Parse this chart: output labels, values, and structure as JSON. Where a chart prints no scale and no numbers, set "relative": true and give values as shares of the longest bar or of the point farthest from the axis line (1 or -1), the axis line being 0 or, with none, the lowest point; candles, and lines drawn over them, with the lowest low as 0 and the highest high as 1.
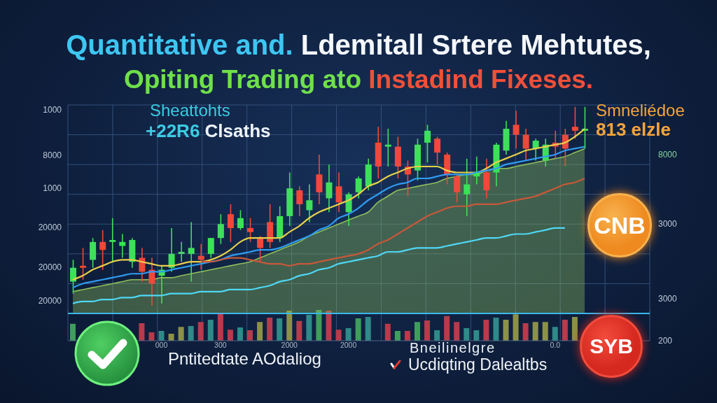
{
  "chart_data": [
    {
      "type": "candlestick",
      "title": "Quantitative and. Ldemitall Srtere Mehtutes,",
      "subtitle": "Opiting Trading ato Instadind Fixeses.",
      "annotations": [
        "Sheattohts",
        "+22R6 Clsaths",
        "Smneliédoe",
        "813 elzle",
        "CNB",
        "SYB",
        "Bneilinelgre",
        "Ucdiqting Dalealtbs",
        "Pntitedtate AOdaliog",
        "1000",
        "8000",
        "1000",
        "20000",
        "20000",
        "20000",
        "8000",
        "3000",
        "3000",
        "200"
      ],
      "categories": [
        null,
        null,
        null,
        null,
        null,
        null,
        null,
        null,
        null,
        null,
        null,
        null,
        null,
        null,
        null,
        null,
        null,
        null,
        null,
        null,
        null,
        null,
        null,
        null,
        null,
        null,
        null,
        null,
        null,
        null,
        null,
        null,
        null,
        null,
        null,
        null,
        null,
        null,
        null,
        null,
        null,
        null,
        null,
        null,
        null,
        null,
        null,
        null,
        null,
        null,
        null,
        null,
        null
      ],
      "ohlc": [
        [
          0.12,
          0.23,
          0.06,
          0.19
        ],
        [
          0.2,
          0.29,
          0.13,
          0.19
        ],
        [
          0.23,
          0.34,
          0.19,
          0.32
        ],
        [
          0.32,
          0.38,
          0.18,
          0.28
        ],
        [
          0.32,
          0.44,
          0.22,
          0.33
        ],
        [
          0.3,
          0.36,
          0.24,
          0.32
        ],
        [
          0.22,
          0.34,
          0.19,
          0.33
        ],
        [
          0.24,
          0.29,
          0.12,
          0.17
        ],
        [
          0.18,
          0.24,
          0,
          0.11
        ],
        [
          0.15,
          0.2,
          0.01,
          0.18
        ],
        [
          0.19,
          0.39,
          0.17,
          0.26
        ],
        [
          0.26,
          0.32,
          0.22,
          0.27
        ],
        [
          0.26,
          0.42,
          0.12,
          0.29
        ],
        [
          0.25,
          0.31,
          0.18,
          0.23
        ],
        [
          0.26,
          0.34,
          0.24,
          0.34
        ],
        [
          0.34,
          0.46,
          0.31,
          0.41
        ],
        [
          0.46,
          0.51,
          0.32,
          0.39
        ],
        [
          0.39,
          0.48,
          0.38,
          0.44
        ],
        [
          0.39,
          0.44,
          0.32,
          0.37
        ],
        [
          0.34,
          0.35,
          0.22,
          0.29
        ],
        [
          0.42,
          0.51,
          0.29,
          0.32
        ],
        [
          0.34,
          0.5,
          0.32,
          0.45
        ],
        [
          0.45,
          0.67,
          0.4,
          0.59
        ],
        [
          0.58,
          0.6,
          0.45,
          0.51
        ],
        [
          0.48,
          0.61,
          0.42,
          0.53
        ],
        [
          0.66,
          0.76,
          0.51,
          0.57
        ],
        [
          0.54,
          0.71,
          0.47,
          0.62
        ],
        [
          0.6,
          0.67,
          0.47,
          0.52
        ],
        [
          0.47,
          0.57,
          0.4,
          0.56
        ],
        [
          0.57,
          0.65,
          0.54,
          0.64
        ],
        [
          0.6,
          0.74,
          0.58,
          0.71
        ],
        [
          0.82,
          0.9,
          0.64,
          0.7
        ],
        [
          0.8,
          0.89,
          0.7,
          0.81
        ],
        [
          0.8,
          0.85,
          0.64,
          0.7
        ],
        [
          0.7,
          0.73,
          0.55,
          0.66
        ],
        [
          0.68,
          0.84,
          0.63,
          0.81
        ],
        [
          0.82,
          0.91,
          0.72,
          0.88
        ],
        [
          0.84,
          0.85,
          0.71,
          0.77
        ],
        [
          0.76,
          0.77,
          0.61,
          0.66
        ],
        [
          0.65,
          0.66,
          0.52,
          0.57
        ],
        [
          0.56,
          0.74,
          0.45,
          0.61
        ],
        [
          0.65,
          0.75,
          0.61,
          0.67
        ],
        [
          0.67,
          0.74,
          0.54,
          0.58
        ],
        [
          0.67,
          0.82,
          0.6,
          0.81
        ],
        [
          0.78,
          0.93,
          0.76,
          0.89
        ],
        [
          0.91,
          0.98,
          0.79,
          0.86
        ],
        [
          0.86,
          0.89,
          0.73,
          0.79
        ],
        [
          0.79,
          0.84,
          0.73,
          0.83
        ],
        [
          0.73,
          0.84,
          0.7,
          0.81
        ],
        [
          0.82,
          0.88,
          0.74,
          0.8
        ],
        [
          0.86,
          0.89,
          0.7,
          0.79
        ],
        [
          0.9,
          1,
          0.84,
          0.88
        ],
        [
          0.88,
          1,
          0.79,
          0.89
        ]
      ],
      "colors": [
        "#3ee05a",
        "#f0483a",
        "#3ee05a",
        "#f0483a",
        "#3ee05a",
        "#3ee05a",
        "#3ee05a",
        "#f0483a",
        "#f0483a",
        "#3ee05a",
        "#3ee05a",
        "#3ee05a",
        "#3ee05a",
        "#f0483a",
        "#3ee05a",
        "#3ee05a",
        "#f0483a",
        "#3ee05a",
        "#f0483a",
        "#f0483a",
        "#f0483a",
        "#3ee05a",
        "#3ee05a",
        "#f0483a",
        "#3ee05a",
        "#f0483a",
        "#3ee05a",
        "#f0483a",
        "#3ee05a",
        "#3ee05a",
        "#3ee05a",
        "#f0483a",
        "#3ee05a",
        "#f0483a",
        "#f0483a",
        "#3ee05a",
        "#3ee05a",
        "#f0483a",
        "#f0483a",
        "#f0483a",
        "#3ee05a",
        "#3ee05a",
        "#f0483a",
        "#3ee05a",
        "#3ee05a",
        "#f0483a",
        "#f0483a",
        "#3ee05a",
        "#3ee05a",
        "#f0483a",
        "#f0483a",
        "#f0483a",
        "#3ee05a"
      ],
      "series": [
        {
          "type": "area",
          "color": "#8fbf5a",
          "values": [
            0.07,
            0.08,
            0.09,
            0.1,
            0.11,
            0.12,
            0.13,
            0.13,
            0.13,
            0.14,
            0.14,
            0.15,
            0.16,
            0.17,
            0.18,
            0.19,
            0.2,
            0.21,
            0.22,
            0.24,
            0.26,
            0.28,
            0.3,
            0.32,
            0.35,
            0.37,
            0.39,
            0.41,
            0.43,
            0.45,
            0.47,
            0.52,
            0.55,
            0.58,
            0.59,
            0.6,
            0.61,
            0.62,
            0.64,
            0.65,
            0.66,
            0.66,
            0.68,
            0.69,
            0.69,
            0.7,
            0.71,
            0.72,
            0.73,
            0.74,
            0.75,
            0.77,
            0.79
          ]
        },
        {
          "type": "line",
          "color": "#e8d04a",
          "values": [
            0.13,
            0.15,
            0.18,
            0.2,
            0.22,
            0.23,
            0.23,
            0.22,
            0.21,
            0.2,
            0.2,
            0.21,
            0.22,
            0.22,
            0.23,
            0.25,
            0.28,
            0.32,
            0.34,
            0.34,
            0.34,
            0.34,
            0.37,
            0.4,
            0.44,
            0.47,
            0.49,
            0.51,
            0.53,
            0.56,
            0.6,
            0.62,
            0.65,
            0.67,
            0.69,
            0.7,
            0.7,
            0.7,
            0.68,
            0.67,
            0.67,
            0.67,
            0.69,
            0.72,
            0.74,
            0.76,
            0.78,
            0.79,
            0.8,
            0.81,
            0.82,
            0.85,
            0.89
          ]
        },
        {
          "type": "line",
          "color": "#2f9cf0",
          "values": [
            0.09,
            0.11,
            0.12,
            0.13,
            0.14,
            0.15,
            0.16,
            0.16,
            0.17,
            0.17,
            0.18,
            0.19,
            0.2,
            0.21,
            0.22,
            0.23,
            0.25,
            0.26,
            0.27,
            0.28,
            0.28,
            0.29,
            0.31,
            0.33,
            0.35,
            0.38,
            0.4,
            0.44,
            0.46,
            0.49,
            0.53,
            0.56,
            0.59,
            0.61,
            0.62,
            0.64,
            0.64,
            0.65,
            0.66,
            0.66,
            0.66,
            0.67,
            0.68,
            0.69,
            0.71,
            0.72,
            0.73,
            0.74,
            0.75,
            0.76,
            0.78,
            0.79,
            0.8
          ]
        },
        {
          "type": "line",
          "color": "#4fd8f5",
          "values": [
            0.01,
            0.02,
            0.02,
            0.03,
            0.03,
            0.04,
            0.04,
            0.05,
            0.05,
            0.05,
            0.06,
            0.06,
            0.06,
            0.07,
            0.07,
            0.07,
            0.08,
            0.08,
            0.08,
            0.09,
            0.1,
            0.12,
            0.13,
            0.15,
            0.16,
            0.18,
            0.19,
            0.21,
            0.22,
            0.23,
            0.24,
            0.25,
            0.27,
            0.27,
            0.28,
            0.29,
            0.29,
            0.29,
            0.3,
            0.31,
            0.32,
            0.33,
            0.34,
            0.34,
            0.35,
            0.36,
            0.36,
            0.37,
            0.38,
            0.39,
            0.39,
            null,
            null
          ]
        },
        {
          "type": "line",
          "color": "#c8583a",
          "values": [
            null,
            null,
            null,
            null,
            null,
            null,
            null,
            null,
            null,
            null,
            null,
            null,
            null,
            0.22,
            0.22,
            0.23,
            0.24,
            0.24,
            0.23,
            0.22,
            0.21,
            0.21,
            0.2,
            0.21,
            0.21,
            0.22,
            0.23,
            0.24,
            0.25,
            0.26,
            0.28,
            0.31,
            0.33,
            0.36,
            0.39,
            0.42,
            0.45,
            0.47,
            0.49,
            0.5,
            0.5,
            0.51,
            0.51,
            0.51,
            0.52,
            0.53,
            0.54,
            0.55,
            0.57,
            0.59,
            0.61,
            0.62,
            0.64
          ]
        }
      ],
      "relative": true,
      "grid": true
    },
    {
      "type": "bar",
      "categories": [
        null,
        null,
        null,
        null,
        null,
        null,
        null,
        null,
        null,
        "000",
        null,
        null,
        null,
        null,
        null,
        "300",
        null,
        null,
        null,
        null,
        null,
        null,
        "2000",
        null,
        null,
        null,
        null,
        null,
        "2000",
        null,
        null,
        null,
        null,
        null,
        null,
        null,
        null,
        null,
        null,
        null,
        null,
        null,
        null,
        null,
        null,
        null,
        null,
        null,
        null,
        "0.0",
        null,
        null,
        null
      ],
      "values": [
        0.55,
        null,
        null,
        null,
        null,
        null,
        null,
        0.57,
        0.27,
        0.32,
        0.23,
        0.45,
        0.48,
        0.61,
        0.68,
        0.91,
        0.36,
        0.43,
        0.34,
        0.61,
        0.75,
        0.73,
        0.98,
        0.64,
        0.84,
        1,
        0.98,
        0.36,
        0.41,
        0.73,
        0.77,
        null,
        0.55,
        0.32,
        0.32,
        0.61,
        0.66,
        0.34,
        0.8,
        0.61,
        0.41,
        0.34,
        0.68,
        0.75,
        0.68,
        0.86,
        0.57,
        0.61,
        0.61,
        0.45,
        0.68,
        0.77,
        null
      ],
      "colors": [
        "#3f9e5c",
        null,
        null,
        null,
        null,
        null,
        null,
        "#b83a4b",
        "#b83a4b",
        "#2f8a88",
        "#8c9148",
        "#8c9148",
        "#2f8a88",
        "#b83a4b",
        "#2f8a88",
        "#b83a4b",
        "#b83a4b",
        "#2f8a88",
        "#b83a4b",
        "#8c9148",
        "#b83a4b",
        "#2f8a88",
        "#8c9148",
        "#b83a4b",
        "#2f8a88",
        "#3f9e5c",
        "#b83a4b",
        "#b83a4b",
        "#2f8a88",
        "#3f9e5c",
        "#2f8a88",
        null,
        "#b83a4b",
        "#3f9e5c",
        "#b83a4b",
        "#3f9e5c",
        "#b83a4b",
        "#2f8a88",
        "#b83a4b",
        "#b83a4b",
        "#2f8a88",
        "#2f8a88",
        "#b83a4b",
        "#2f8a88",
        "#8c9148",
        "#8c9148",
        "#b83a4b",
        "#8c9148",
        "#8c9148",
        "#2f8a88",
        "#b83a4b",
        "#8c9148",
        null
      ],
      "relative": true,
      "grid": "x"
    }
  ]
}
